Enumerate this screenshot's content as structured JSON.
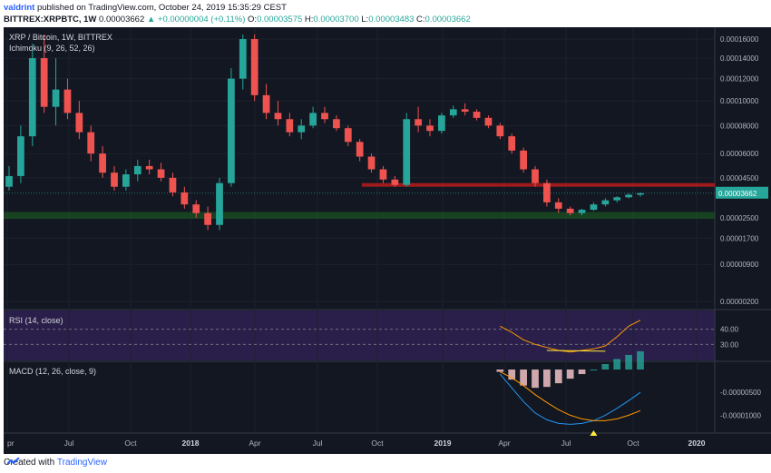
{
  "header": {
    "user": "valdrint",
    "published": "published on TradingView.com, October 24, 2019 15:35:29 CEST",
    "symbol": "BITTREX:XRPBTC, 1W",
    "last": "0.00003662",
    "change": "▲ +0.00000004 (+0.11%)",
    "o_label": "O:",
    "o": "0.00003575",
    "h_label": "H:",
    "h": "0.00003700",
    "l_label": "L:",
    "l": "0.00003483",
    "c_label": "C:",
    "c": "0.00003662"
  },
  "panes": {
    "main_title": "XRP / Bitcoin, 1W, BITTREX",
    "ichimoku": "Ichimoku (9, 26, 52, 26)",
    "rsi_title": "RSI (14, close)",
    "macd_title": "MACD (12, 26, close, 9)"
  },
  "price_axis": {
    "labels": [
      "0.00016000",
      "0.00014000",
      "0.00012000",
      "0.00010000",
      "0.00008000",
      "0.00006000",
      "0.00004500",
      "0.00002500",
      "0.00001700",
      "0.00000900",
      "0.00000200"
    ],
    "current": "0.00003662"
  },
  "rsi_axis": {
    "labels": [
      "40.00",
      "30.00"
    ]
  },
  "macd_axis": {
    "labels": [
      "-0.00000500",
      "-0.00001000"
    ]
  },
  "time_axis": {
    "labels": [
      "pr",
      "Jul",
      "Oct",
      "2018",
      "Apr",
      "Jul",
      "Oct",
      "2019",
      "Apr",
      "Jul",
      "Oct",
      "2020"
    ],
    "bold": [
      false,
      false,
      false,
      true,
      false,
      false,
      false,
      true,
      false,
      false,
      false,
      true
    ]
  },
  "footer": {
    "created": "Created with",
    "brand": "TradingView"
  },
  "colors": {
    "up": "#26a69a",
    "down": "#ef5350",
    "resistance": "#b71c1c",
    "support": "#1b5e20",
    "rsi_bg": "#2a1f4a",
    "macd_line": "#2196f3",
    "signal_line": "#ff9800",
    "marker": "#ffeb3b"
  },
  "chart_data": {
    "type": "candlestick",
    "title": "XRP / Bitcoin, 1W, BITTREX",
    "x_range": [
      "2017-04",
      "2020-01"
    ],
    "y_range": [
      2e-06,
      0.000165
    ],
    "resistance_zone": [
      4e-05,
      4.2e-05
    ],
    "support_zone": [
      2.45e-05,
      2.75e-05
    ],
    "candles": [
      [
        4e-05,
        5.2e-05,
        3.8e-05,
        4.6e-05
      ],
      [
        4.6e-05,
        8e-05,
        4.2e-05,
        7.2e-05
      ],
      [
        7.2e-05,
        0.000155,
        6.5e-05,
        0.00014
      ],
      [
        0.00014,
        0.000165,
        9e-05,
        9.5e-05
      ],
      [
        9.5e-05,
        0.00014,
        8e-05,
        0.00011
      ],
      [
        0.00011,
        0.00012,
        8.5e-05,
        9e-05
      ],
      [
        9e-05,
        0.0001,
        7e-05,
        7.5e-05
      ],
      [
        7.5e-05,
        8e-05,
        5.5e-05,
        6e-05
      ],
      [
        6e-05,
        6.5e-05,
        4.5e-05,
        4.8e-05
      ],
      [
        4.8e-05,
        5.2e-05,
        3.8e-05,
        4e-05
      ],
      [
        4e-05,
        5e-05,
        3.8e-05,
        4.7e-05
      ],
      [
        4.7e-05,
        5.6e-05,
        4.3e-05,
        5.2e-05
      ],
      [
        5.2e-05,
        5.6e-05,
        4.7e-05,
        5e-05
      ],
      [
        5e-05,
        5.4e-05,
        4.3e-05,
        4.5e-05
      ],
      [
        4.5e-05,
        4.8e-05,
        3.5e-05,
        3.7e-05
      ],
      [
        3.7e-05,
        4e-05,
        2.9e-05,
        3.1e-05
      ],
      [
        3.1e-05,
        3.3e-05,
        2.5e-05,
        2.7e-05
      ],
      [
        2.7e-05,
        3e-05,
        2e-05,
        2.2e-05
      ],
      [
        2.2e-05,
        4.5e-05,
        2e-05,
        4.2e-05
      ],
      [
        4.2e-05,
        0.00013,
        4e-05,
        0.00012
      ],
      [
        0.00012,
        0.000165,
        0.00011,
        0.00016
      ],
      [
        0.00016,
        0.000165,
        0.0001,
        0.000105
      ],
      [
        0.000105,
        0.000115,
        8.5e-05,
        9e-05
      ],
      [
        9e-05,
        0.0001,
        8e-05,
        8.5e-05
      ],
      [
        8.5e-05,
        9e-05,
        7.2e-05,
        7.5e-05
      ],
      [
        7.5e-05,
        8.5e-05,
        7e-05,
        8e-05
      ],
      [
        8e-05,
        9.5e-05,
        7.8e-05,
        9e-05
      ],
      [
        9e-05,
        9.5e-05,
        8.2e-05,
        8.5e-05
      ],
      [
        8.5e-05,
        8.8e-05,
        7.6e-05,
        7.8e-05
      ],
      [
        7.8e-05,
        8e-05,
        6.5e-05,
        6.8e-05
      ],
      [
        6.8e-05,
        7e-05,
        5.5e-05,
        5.8e-05
      ],
      [
        5.8e-05,
        6e-05,
        4.8e-05,
        5e-05
      ],
      [
        5e-05,
        5.2e-05,
        4.2e-05,
        4.4e-05
      ],
      [
        4.4e-05,
        4.6e-05,
        4e-05,
        4.1e-05
      ],
      [
        4.1e-05,
        9e-05,
        4e-05,
        8.5e-05
      ],
      [
        8.5e-05,
        9.5e-05,
        7.5e-05,
        8e-05
      ],
      [
        8e-05,
        8.5e-05,
        7.2e-05,
        7.6e-05
      ],
      [
        7.6e-05,
        9e-05,
        7.4e-05,
        8.8e-05
      ],
      [
        8.8e-05,
        9.6e-05,
        8.6e-05,
        9.3e-05
      ],
      [
        9.3e-05,
        9.8e-05,
        8.8e-05,
        9.1e-05
      ],
      [
        9.1e-05,
        9.3e-05,
        8.4e-05,
        8.6e-05
      ],
      [
        8.6e-05,
        8.8e-05,
        7.8e-05,
        8e-05
      ],
      [
        8e-05,
        8.2e-05,
        7e-05,
        7.2e-05
      ],
      [
        7.2e-05,
        7.4e-05,
        6e-05,
        6.2e-05
      ],
      [
        6.2e-05,
        6.4e-05,
        4.8e-05,
        5e-05
      ],
      [
        5e-05,
        5.2e-05,
        4e-05,
        4.2e-05
      ],
      [
        4.2e-05,
        4.4e-05,
        3e-05,
        3.2e-05
      ],
      [
        3.2e-05,
        3.4e-05,
        2.7e-05,
        2.9e-05
      ],
      [
        2.9e-05,
        3e-05,
        2.6e-05,
        2.7e-05
      ],
      [
        2.7e-05,
        2.9e-05,
        2.6e-05,
        2.85e-05
      ],
      [
        2.85e-05,
        3.2e-05,
        2.8e-05,
        3.1e-05
      ],
      [
        3.1e-05,
        3.4e-05,
        3e-05,
        3.3e-05
      ],
      [
        3.3e-05,
        3.5e-05,
        3.2e-05,
        3.45e-05
      ],
      [
        3.45e-05,
        3.65e-05,
        3.4e-05,
        3.58e-05
      ],
      [
        3.58e-05,
        3.7e-05,
        3.48e-05,
        3.66e-05
      ]
    ],
    "rsi": [
      null,
      null,
      null,
      null,
      null,
      null,
      null,
      null,
      null,
      null,
      null,
      null,
      null,
      null,
      null,
      null,
      null,
      null,
      null,
      null,
      null,
      null,
      null,
      null,
      null,
      null,
      null,
      null,
      null,
      null,
      null,
      null,
      null,
      null,
      null,
      null,
      null,
      null,
      null,
      null,
      null,
      null,
      42,
      38,
      33,
      30,
      28,
      26,
      25,
      26,
      27,
      29,
      35,
      42,
      46
    ],
    "rsi_levels": [
      40,
      30
    ],
    "macd": [
      null,
      null,
      null,
      null,
      null,
      null,
      null,
      null,
      null,
      null,
      null,
      null,
      null,
      null,
      null,
      null,
      null,
      null,
      null,
      null,
      null,
      null,
      null,
      null,
      null,
      null,
      null,
      null,
      null,
      null,
      null,
      null,
      null,
      null,
      null,
      null,
      null,
      null,
      null,
      null,
      null,
      null,
      -1e-06,
      -4e-06,
      -7e-06,
      -9.5e-06,
      -1.1e-05,
      -1.18e-05,
      -1.2e-05,
      -1.18e-05,
      -1.12e-05,
      -1e-05,
      -8.5e-06,
      -6.8e-06,
      -5e-06
    ],
    "signal": [
      null,
      null,
      null,
      null,
      null,
      null,
      null,
      null,
      null,
      null,
      null,
      null,
      null,
      null,
      null,
      null,
      null,
      null,
      null,
      null,
      null,
      null,
      null,
      null,
      null,
      null,
      null,
      null,
      null,
      null,
      null,
      null,
      null,
      null,
      null,
      null,
      null,
      null,
      null,
      null,
      null,
      null,
      -5e-07,
      -1.8e-06,
      -3.5e-06,
      -5.5e-06,
      -7.2e-06,
      -8.8e-06,
      -1e-05,
      -1.08e-05,
      -1.12e-05,
      -1.12e-05,
      -1.08e-05,
      -1e-05,
      -9e-06
    ]
  }
}
